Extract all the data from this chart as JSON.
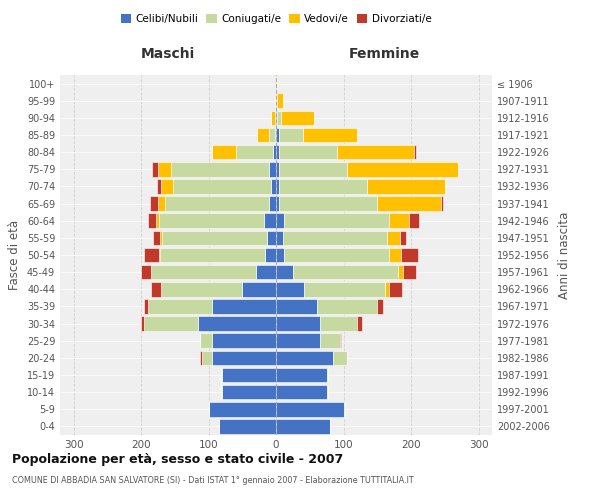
{
  "age_groups": [
    "0-4",
    "5-9",
    "10-14",
    "15-19",
    "20-24",
    "25-29",
    "30-34",
    "35-39",
    "40-44",
    "45-49",
    "50-54",
    "55-59",
    "60-64",
    "65-69",
    "70-74",
    "75-79",
    "80-84",
    "85-89",
    "90-94",
    "95-99",
    "100+"
  ],
  "birth_years": [
    "2002-2006",
    "1997-2001",
    "1992-1996",
    "1987-1991",
    "1982-1986",
    "1977-1981",
    "1972-1976",
    "1967-1971",
    "1962-1966",
    "1957-1961",
    "1952-1956",
    "1947-1951",
    "1942-1946",
    "1937-1941",
    "1932-1936",
    "1927-1931",
    "1922-1926",
    "1917-1921",
    "1912-1916",
    "1907-1911",
    "≤ 1906"
  ],
  "maschi": {
    "celibi": [
      85,
      100,
      80,
      80,
      95,
      95,
      115,
      95,
      50,
      30,
      17,
      14,
      18,
      10,
      8,
      10,
      5,
      2,
      0,
      0,
      0
    ],
    "coniugati": [
      0,
      0,
      2,
      2,
      15,
      18,
      80,
      95,
      120,
      155,
      155,
      155,
      155,
      155,
      145,
      145,
      55,
      8,
      2,
      0,
      0
    ],
    "vedovi": [
      0,
      0,
      0,
      0,
      0,
      0,
      0,
      0,
      0,
      0,
      2,
      3,
      5,
      10,
      18,
      20,
      35,
      18,
      5,
      2,
      0
    ],
    "divorziati": [
      0,
      0,
      0,
      0,
      2,
      0,
      5,
      5,
      15,
      15,
      22,
      10,
      12,
      12,
      5,
      8,
      0,
      0,
      0,
      0,
      0
    ]
  },
  "femmine": {
    "nubili": [
      80,
      100,
      75,
      75,
      85,
      65,
      65,
      60,
      42,
      25,
      12,
      10,
      12,
      5,
      5,
      5,
      5,
      5,
      2,
      0,
      0
    ],
    "coniugate": [
      0,
      2,
      2,
      2,
      20,
      30,
      55,
      90,
      120,
      155,
      155,
      155,
      155,
      145,
      130,
      100,
      85,
      35,
      5,
      2,
      0
    ],
    "vedove": [
      0,
      0,
      0,
      0,
      0,
      0,
      0,
      0,
      5,
      8,
      18,
      18,
      30,
      95,
      115,
      165,
      115,
      80,
      50,
      8,
      2
    ],
    "divorziate": [
      0,
      0,
      0,
      0,
      0,
      2,
      8,
      8,
      20,
      20,
      25,
      10,
      15,
      2,
      0,
      0,
      2,
      0,
      0,
      0,
      0
    ]
  },
  "colors": {
    "celibi": "#4472c4",
    "coniugati": "#c5d9a0",
    "vedovi": "#ffc000",
    "divorziati": "#c0392b"
  },
  "title": "Popolazione per età, sesso e stato civile - 2007",
  "subtitle": "COMUNE DI ABBADIA SAN SALVATORE (SI) - Dati ISTAT 1° gennaio 2007 - Elaborazione TUTTITALIA.IT",
  "ylabel_left": "Fasce di età",
  "ylabel_right": "Anni di nascita",
  "xlabel_left": "Maschi",
  "xlabel_right": "Femmine",
  "xlim": 320,
  "bg_color": "#ffffff",
  "plot_bg": "#efefef",
  "grid_color": "#cccccc"
}
